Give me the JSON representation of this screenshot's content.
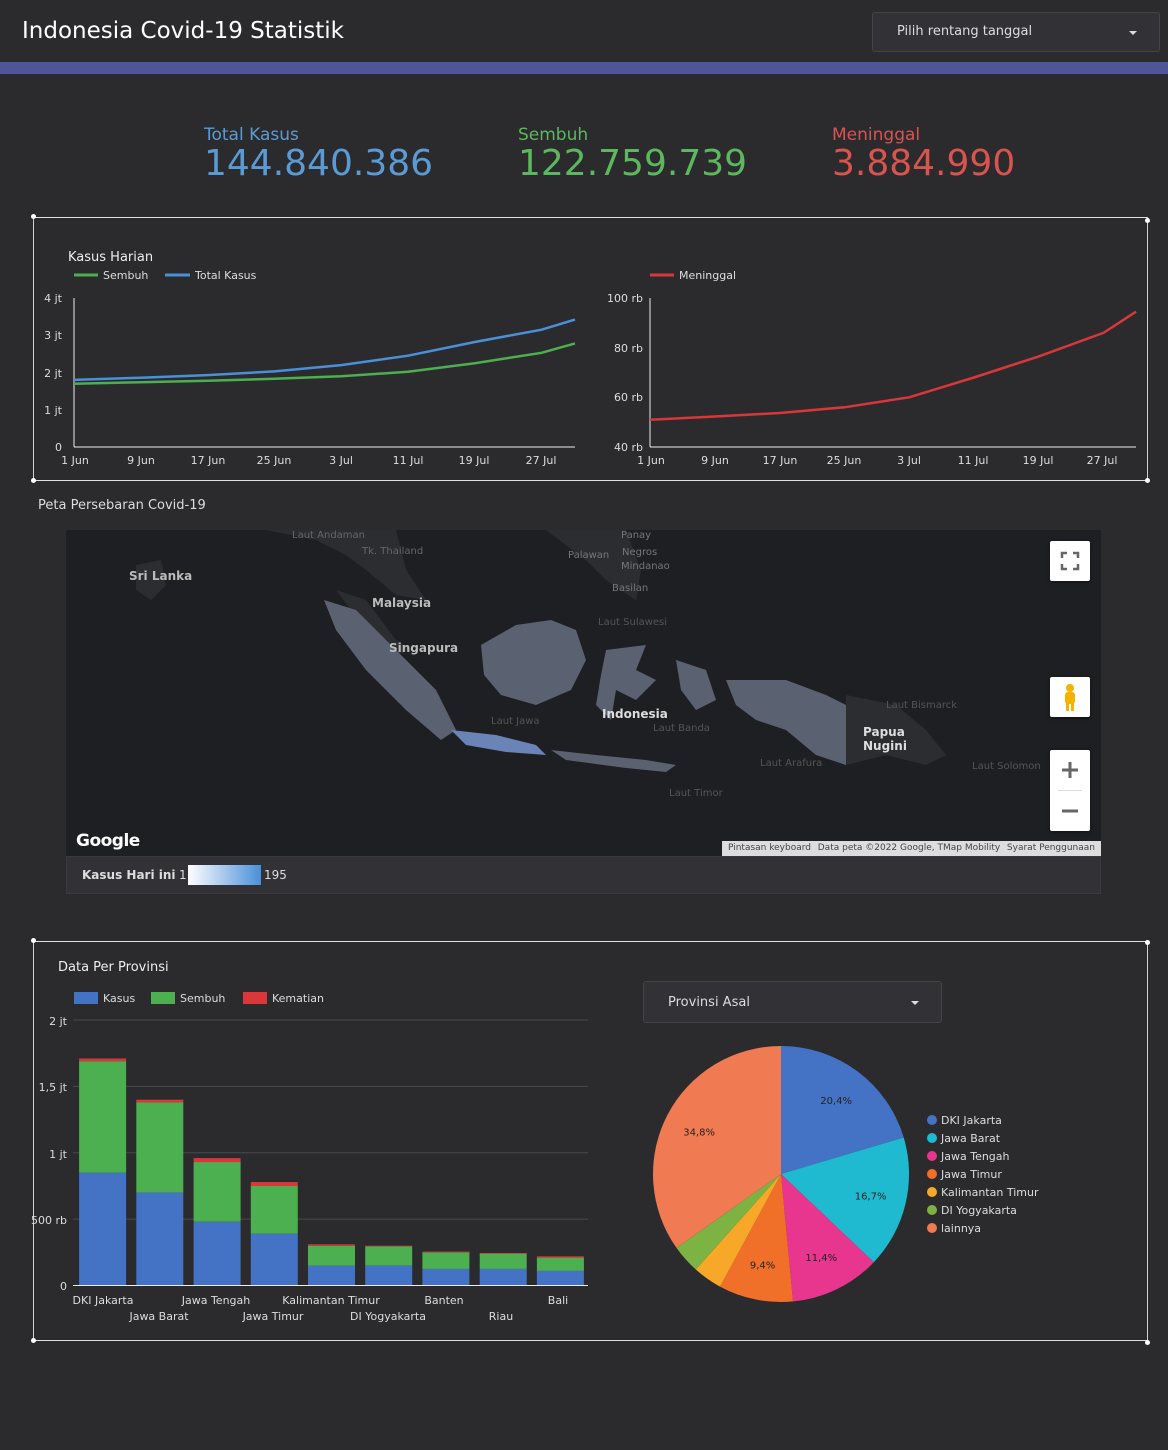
{
  "header": {
    "title": "Indonesia Covid-19 Statistik",
    "date_range_placeholder": "Pilih rentang tanggal",
    "accent_color": "#4e5698"
  },
  "kpis": [
    {
      "label": "Total Kasus",
      "value": "144.840.386",
      "color": "#5b9bd5"
    },
    {
      "label": "Sembuh",
      "value": "122.759.739",
      "color": "#5cb85c"
    },
    {
      "label": "Meninggal",
      "value": "3.884.990",
      "color": "#d9534f"
    }
  ],
  "chart_data": [
    {
      "type": "line",
      "title": "Kasus Harian",
      "x_ticks": [
        "1 Jun",
        "9 Jun",
        "17 Jun",
        "25 Jun",
        "3 Jul",
        "11 Jul",
        "19 Jul",
        "27 Jul"
      ],
      "y_ticks": [
        "0",
        "1 jt",
        "2 jt",
        "3 jt",
        "4 jt"
      ],
      "ylim": [
        0,
        4000000
      ],
      "x_range": [
        "1 Jun",
        "31 Jul"
      ],
      "series": [
        {
          "name": "Sembuh",
          "color": "#4caf50",
          "x": [
            "1 Jun",
            "9 Jun",
            "17 Jun",
            "25 Jun",
            "3 Jul",
            "11 Jul",
            "19 Jul",
            "27 Jul",
            "31 Jul"
          ],
          "values": [
            1700000,
            1740000,
            1780000,
            1830000,
            1900000,
            2020000,
            2250000,
            2530000,
            2780000
          ]
        },
        {
          "name": "Total Kasus",
          "color": "#4a90d9",
          "x": [
            "1 Jun",
            "9 Jun",
            "17 Jun",
            "25 Jun",
            "3 Jul",
            "11 Jul",
            "19 Jul",
            "27 Jul",
            "31 Jul"
          ],
          "values": [
            1800000,
            1860000,
            1930000,
            2030000,
            2200000,
            2450000,
            2820000,
            3150000,
            3420000
          ]
        }
      ],
      "legend": "top-left"
    },
    {
      "type": "line",
      "x_ticks": [
        "1 Jun",
        "9 Jun",
        "17 Jun",
        "25 Jun",
        "3 Jul",
        "11 Jul",
        "19 Jul",
        "27 Jul"
      ],
      "y_ticks": [
        "40 rb",
        "60 rb",
        "80 rb",
        "100 rb"
      ],
      "ylim": [
        40000,
        100000
      ],
      "x_range": [
        "1 Jun",
        "31 Jul"
      ],
      "series": [
        {
          "name": "Meninggal",
          "color": "#d9373a",
          "x": [
            "1 Jun",
            "9 Jun",
            "17 Jun",
            "25 Jun",
            "3 Jul",
            "11 Jul",
            "19 Jul",
            "27 Jul",
            "31 Jul"
          ],
          "values": [
            51000,
            52300,
            53700,
            56000,
            60000,
            68000,
            76500,
            86000,
            94500
          ]
        }
      ],
      "legend": "top-left"
    },
    {
      "type": "bar",
      "title": "Data Per Provinsi",
      "stacked": true,
      "categories": [
        "DKI Jakarta",
        "Jawa Barat",
        "Jawa Tengah",
        "Jawa Timur",
        "Kalimantan Timur",
        "DI Yogyakarta",
        "Banten",
        "Riau",
        "Bali"
      ],
      "y_ticks": [
        "0",
        "500 rb",
        "1 jt",
        "1,5 jt",
        "2 jt"
      ],
      "ylim": [
        0,
        2000000
      ],
      "series": [
        {
          "name": "Kasus",
          "color": "#4472c4",
          "values": [
            850000,
            700000,
            480000,
            390000,
            150000,
            150000,
            125000,
            125000,
            110000
          ]
        },
        {
          "name": "Sembuh",
          "color": "#4caf50",
          "values": [
            840000,
            680000,
            450000,
            360000,
            150000,
            145000,
            125000,
            115000,
            100000
          ]
        },
        {
          "name": "Kematian",
          "color": "#d9373a",
          "values": [
            20000,
            20000,
            30000,
            30000,
            10000,
            5000,
            5000,
            5000,
            10000
          ]
        }
      ],
      "legend": "top-left",
      "grid": true
    },
    {
      "type": "pie",
      "slices": [
        {
          "name": "DKI Jakarta",
          "value": 20.4,
          "label": "20,4%",
          "color": "#4472c4"
        },
        {
          "name": "Jawa Barat",
          "value": 16.7,
          "label": "16,7%",
          "color": "#1fbad0"
        },
        {
          "name": "Jawa Tengah",
          "value": 11.4,
          "label": "11,4%",
          "color": "#e8368f"
        },
        {
          "name": "Jawa Timur",
          "value": 9.4,
          "label": "9,4%",
          "color": "#f0702a"
        },
        {
          "name": "Kalimantan Timur",
          "value": 3.7,
          "label": "",
          "color": "#f7a829"
        },
        {
          "name": "DI Yogyakarta",
          "value": 3.6,
          "label": "",
          "color": "#7cb342"
        },
        {
          "name": "lainnya",
          "value": 34.8,
          "label": "34,8%",
          "color": "#f07a52"
        }
      ],
      "legend": "right"
    }
  ],
  "map": {
    "title": "Peta Persebaran Covid-19",
    "labels": {
      "sri_lanka": "Sri Lanka",
      "malaysia": "Malaysia",
      "singapura": "Singapura",
      "indonesia": "Indonesia",
      "papua": "Papua",
      "nugini": "Nugini",
      "thailand": "Tk. Thailand",
      "andaman": "Laut Andaman",
      "palawan": "Palawan",
      "panay": "Panay",
      "negros": "Negros",
      "mindanao": "Mindanao",
      "basilan": "Basilan",
      "sulawesi_sea": "Laut Sulawesi",
      "java_sea": "Laut Jawa",
      "banda": "Laut Banda",
      "arafura": "Laut Arafura",
      "timor": "Laut Timor",
      "bismarck": "Laut Bismarck",
      "solomon": "Laut Solomon"
    },
    "google_logo": "Google",
    "attribution": {
      "shortcuts": "Pintasan keyboard",
      "data": "Data peta ©2022 Google, TMap Mobility",
      "terms": "Syarat Penggunaan"
    },
    "legend": {
      "label": "Kasus Hari ini",
      "min": "1",
      "max": "195"
    }
  },
  "province_filter": {
    "label": "Provinsi Asal"
  }
}
